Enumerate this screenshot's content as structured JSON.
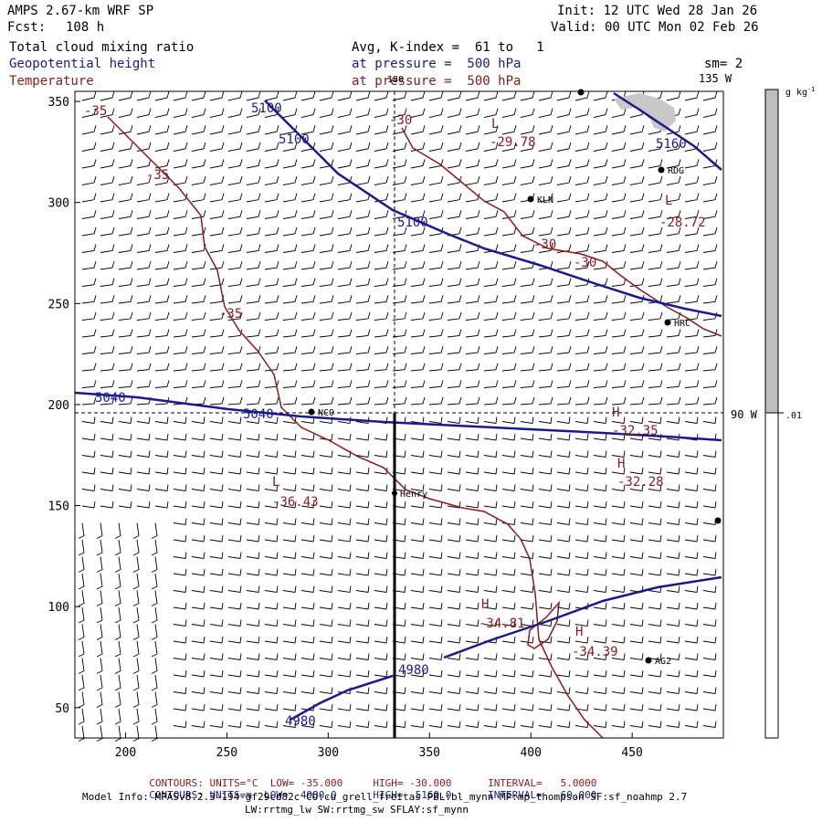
{
  "header": {
    "model_line": "AMPS 2.67-km WRF SP",
    "fcst_label": "Fcst:",
    "fcst_value": "108 h",
    "init": "Init: 12 UTC Wed 28 Jan 26",
    "valid": "Valid: 00 UTC Mon 02 Feb 26",
    "field1": "Total cloud mixing ratio",
    "field2": "Geopotential height",
    "field3": "Temperature",
    "avg_line": "Avg, K-index =  61 to   1",
    "pressure1": "at pressure =  500 hPa",
    "pressure2": "at pressure =  500 hPa",
    "sm": "sm= 2",
    "lon_135": "135 W",
    "lon_180": "180",
    "lon_90": "90 W"
  },
  "colors": {
    "height": "#1a1a8c",
    "temperature": "#8b1a1a",
    "cloud": "#bdbdbd"
  },
  "axes": {
    "x_ticks": [
      200,
      250,
      300,
      350,
      400,
      450
    ],
    "y_ticks": [
      50,
      100,
      150,
      200,
      250,
      300,
      350
    ],
    "x_range": [
      175,
      495
    ],
    "y_range": [
      35,
      355
    ]
  },
  "height_labels": [
    "5100",
    "5100",
    "5100",
    "5160",
    "5040",
    "5040",
    "4980",
    "4980"
  ],
  "temp_labels": [
    "-35",
    "-35",
    "-35",
    "-30",
    "-30",
    "-30"
  ],
  "extrema": [
    {
      "letter": "L",
      "value": "-29.78"
    },
    {
      "letter": "L",
      "value": "-28.72"
    },
    {
      "letter": "H",
      "value": "-32.35"
    },
    {
      "letter": "H",
      "value": "-32.28"
    },
    {
      "letter": "L",
      "value": "-36.43"
    },
    {
      "letter": "H",
      "value": "-34.81"
    },
    {
      "letter": "H",
      "value": "-34.39"
    }
  ],
  "stations": [
    "RDG",
    "KLN",
    "HRC",
    "NCO",
    "Henry",
    "AG2"
  ],
  "colorbar": {
    "unit": "g kg",
    "unit_sup": "-1",
    "tick": ".01"
  },
  "footer": {
    "c1_label": "CONTOURS:",
    "c1_units": "UNITS=°C",
    "c1_low": "LOW= -35.000",
    "c1_high": "HIGH= -30.000",
    "c1_int": "INTERVAL=   5.0000",
    "c2_label": "CONTOURS:",
    "c2_units": "UNITS=m",
    "c2_low": "LOW=  4980.0",
    "c2_high": "HIGH=  5160.0",
    "c2_int": "INTERVAL=   60.000",
    "model_info": "Model Info: MPASv8.2.3-194-gf29cd82c CU:cu_grell_freitas PBL:bl_mynn MP:mp_thompson SF:sf_noahmp 2.7",
    "model_info2": "LW:rrtmg_lw SW:rrtmg_sw SFLAY:sf_mynn"
  }
}
